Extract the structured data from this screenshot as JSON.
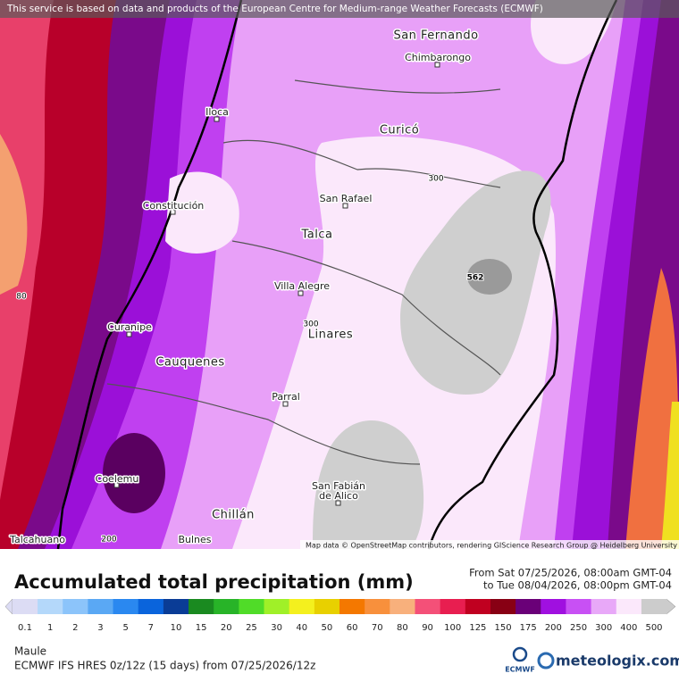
{
  "header": {
    "notice": "This service is based on data and products of the European Centre for Medium-range Weather Forecasts (ECMWF)"
  },
  "map": {
    "places": [
      "San Fernando",
      "Chimbarongo",
      "Iloca",
      "Curicó",
      "Constitución",
      "San Rafael",
      "Talca",
      "Villa Alegre",
      "Curanipe",
      "Linares",
      "Cauquenes",
      "Parral",
      "Coelemu",
      "San Fabián",
      "de Alico",
      "Chillán",
      "Talcahuano",
      "Bulnes"
    ],
    "contours": [
      "300",
      "300",
      "80",
      "200",
      "562"
    ],
    "attribution": "Map data © OpenStreetMap contributors, rendering GIScience Research Group @ Heidelberg University"
  },
  "legend": {
    "title": "Accumulated total precipitation (mm)",
    "valid_from": "From Sat 07/25/2026, 08:00am GMT-04",
    "valid_to": "to Tue 08/04/2026, 08:00pm GMT-04",
    "items": [
      {
        "value": 0.1,
        "color": "#dcdcf4"
      },
      {
        "value": 1,
        "color": "#b4d8fa"
      },
      {
        "value": 2,
        "color": "#8cc4fa"
      },
      {
        "value": 3,
        "color": "#5aa8f4"
      },
      {
        "value": 5,
        "color": "#2a88f0"
      },
      {
        "value": 7,
        "color": "#0a64dc"
      },
      {
        "value": 10,
        "color": "#0a3c96"
      },
      {
        "value": 15,
        "color": "#1a8a20"
      },
      {
        "value": 20,
        "color": "#28b428"
      },
      {
        "value": 25,
        "color": "#50dc28"
      },
      {
        "value": 30,
        "color": "#a0f028"
      },
      {
        "value": 40,
        "color": "#f4f01e"
      },
      {
        "value": 50,
        "color": "#e8d000"
      },
      {
        "value": 60,
        "color": "#f47800"
      },
      {
        "value": 70,
        "color": "#f8903c"
      },
      {
        "value": 80,
        "color": "#f8b07c"
      },
      {
        "value": 90,
        "color": "#f45078"
      },
      {
        "value": 100,
        "color": "#e81e50"
      },
      {
        "value": 125,
        "color": "#c00020"
      },
      {
        "value": 150,
        "color": "#880014"
      },
      {
        "value": 175,
        "color": "#6a0078"
      },
      {
        "value": 200,
        "color": "#a010e0"
      },
      {
        "value": 250,
        "color": "#c850f4"
      },
      {
        "value": 300,
        "color": "#e8a8f8"
      },
      {
        "value": 400,
        "color": "#fbe8fb"
      },
      {
        "value": 500,
        "color": "#cccccc"
      }
    ]
  },
  "footer": {
    "region": "Maule",
    "model": "ECMWF IFS HRES 0z/12z (15 days) from 07/25/2026/12z",
    "ecmwf": "ECMWF",
    "brand": "meteologix.com"
  }
}
